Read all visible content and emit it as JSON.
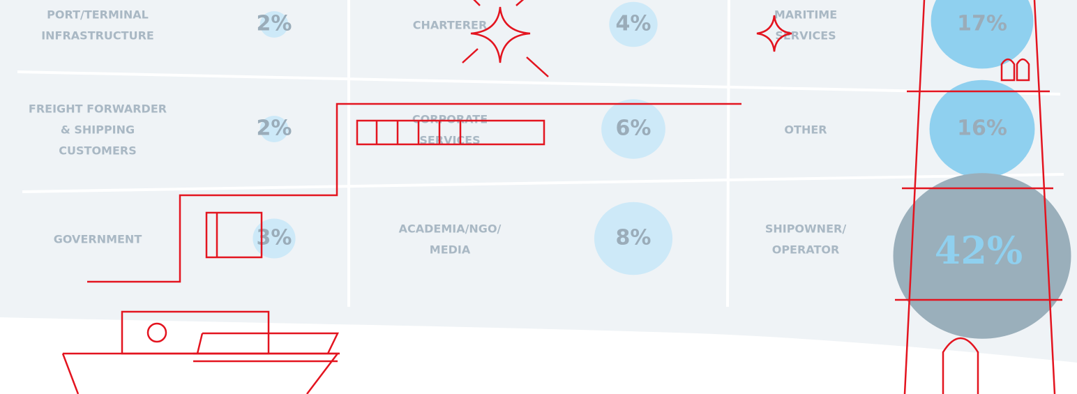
{
  "cells": [
    {
      "label": [
        "PORT/TERMINAL",
        "INFRASTRUCTURE"
      ],
      "value": "2%"
    },
    {
      "label": [
        "CHARTERER"
      ],
      "value": "4%"
    },
    {
      "label": [
        "MARITIME",
        "SERVICES"
      ],
      "value": "17%"
    },
    {
      "label": [
        "FREIGHT FORWARDER",
        "& SHIPPING",
        "CUSTOMERS"
      ],
      "value": "2%"
    },
    {
      "label": [
        "CORPORATE",
        "SERVICES"
      ],
      "value": "6%"
    },
    {
      "label": [
        "OTHER"
      ],
      "value": "16%"
    },
    {
      "label": [
        "GOVERNMENT"
      ],
      "value": "3%"
    },
    {
      "label": [
        "ACADEMIA/NGO/",
        "MEDIA"
      ],
      "value": "8%"
    },
    {
      "label": [
        "SHIPOWNER/",
        "OPERATOR"
      ],
      "value": "42%"
    }
  ]
}
